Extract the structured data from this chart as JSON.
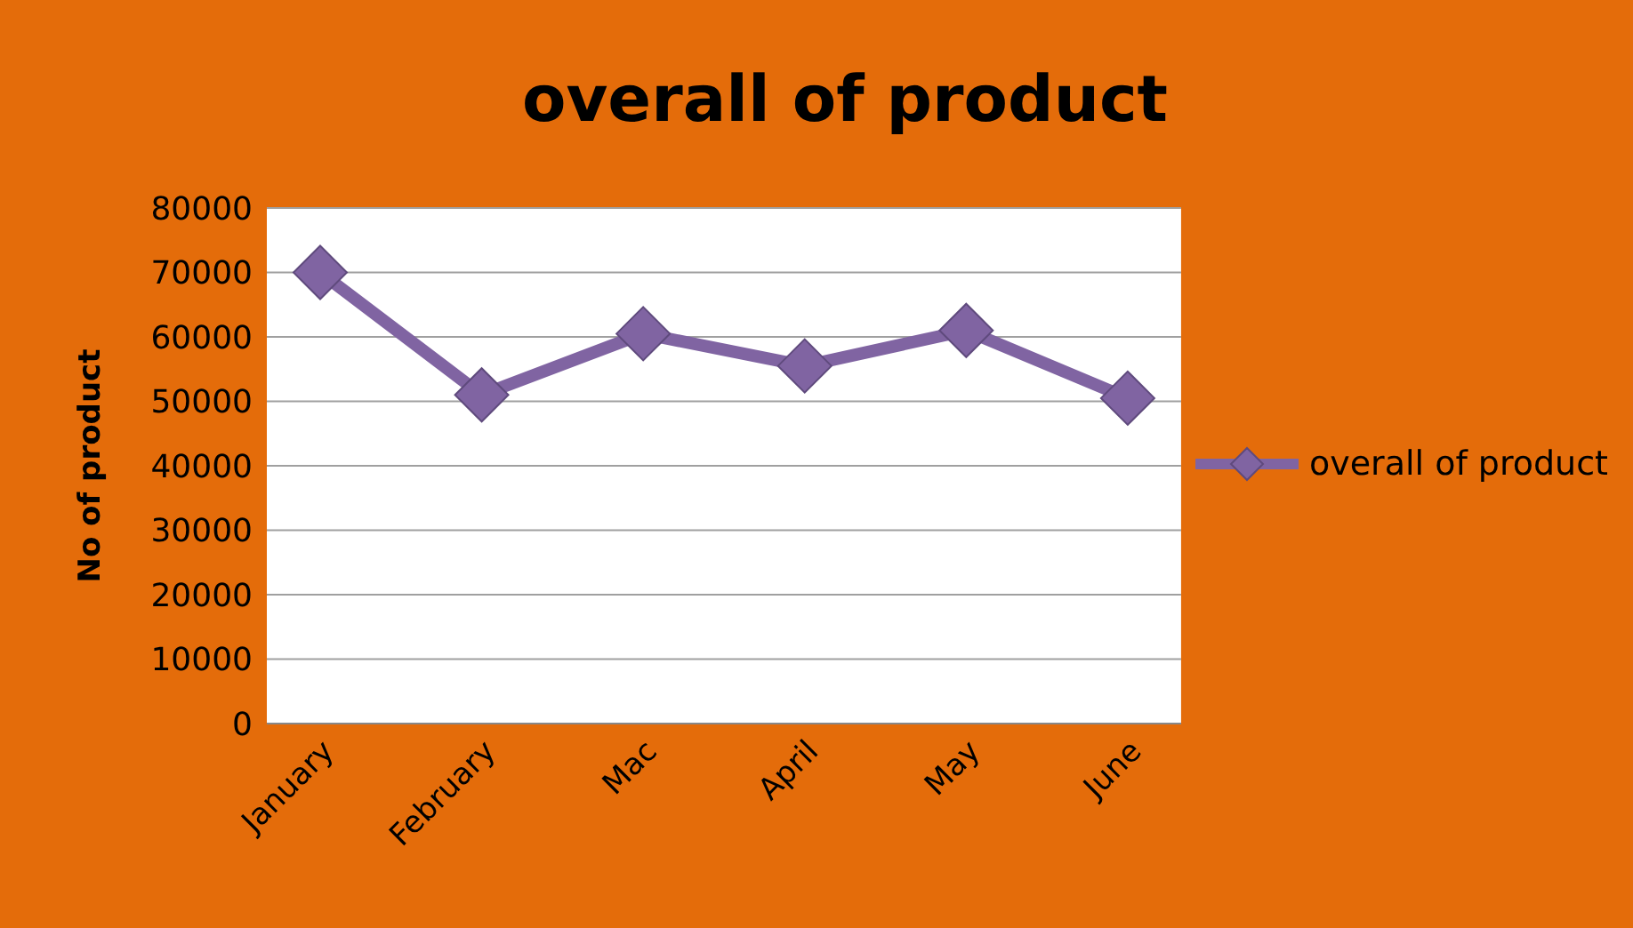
{
  "chart_data": {
    "type": "line",
    "title": "overall of product",
    "ylabel": "No of product",
    "categories": [
      "January",
      "February",
      "Mac",
      "April",
      "May",
      "June"
    ],
    "series": [
      {
        "name": "overall of product",
        "color": "#8064a2",
        "values": [
          70000,
          51000,
          60500,
          55500,
          61000,
          50500
        ]
      }
    ],
    "ylim": [
      0,
      80000
    ],
    "yticks": [
      0,
      10000,
      20000,
      30000,
      40000,
      50000,
      60000,
      70000,
      80000
    ],
    "grid": "y",
    "legend": "right",
    "marker": "diamond"
  }
}
